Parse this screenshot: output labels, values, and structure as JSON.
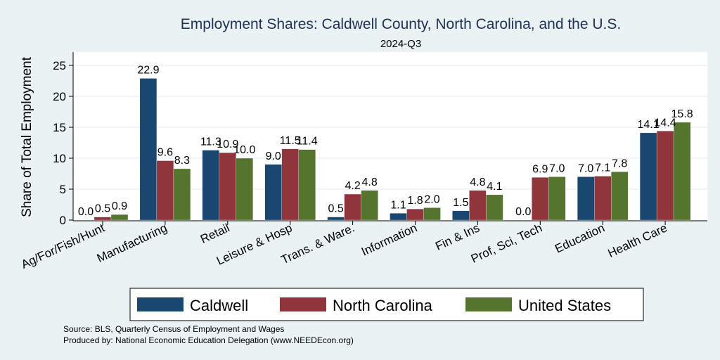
{
  "chart_data": {
    "type": "bar",
    "title": "Employment Shares: Caldwell County, North Carolina, and the U.S.",
    "subtitle": "2024-Q3",
    "xlabel": "",
    "ylabel": "Share of Total Employment",
    "ylim": [
      0,
      27
    ],
    "yticks": [
      0,
      5,
      10,
      15,
      20,
      25
    ],
    "grid": true,
    "legend_position": "bottom",
    "categories": [
      "Ag/For/Fish/Hunt",
      "Manufacturing",
      "Retail",
      "Leisure & Hosp",
      "Trans. & Ware.",
      "Information",
      "Fin & Ins",
      "Prof, Sci, Tech",
      "Education",
      "Health Care"
    ],
    "series": [
      {
        "name": "Caldwell",
        "color": "#1a476f",
        "values": [
          0.0,
          22.9,
          11.3,
          9.0,
          0.5,
          1.1,
          1.5,
          0.0,
          7.0,
          14.1
        ]
      },
      {
        "name": "North Carolina",
        "color": "#90353b",
        "values": [
          0.5,
          9.6,
          10.9,
          11.5,
          4.2,
          1.8,
          4.8,
          6.9,
          7.1,
          14.4
        ]
      },
      {
        "name": "United States",
        "color": "#55752f",
        "values": [
          0.9,
          8.3,
          10.0,
          11.4,
          4.8,
          2.0,
          4.1,
          7.0,
          7.8,
          15.8
        ]
      }
    ],
    "notes": [
      "Source: BLS, Quarterly Census of Employment and Wages",
      "Produced by: National Economic Education Delegation (www.NEEDEcon.org)"
    ]
  }
}
